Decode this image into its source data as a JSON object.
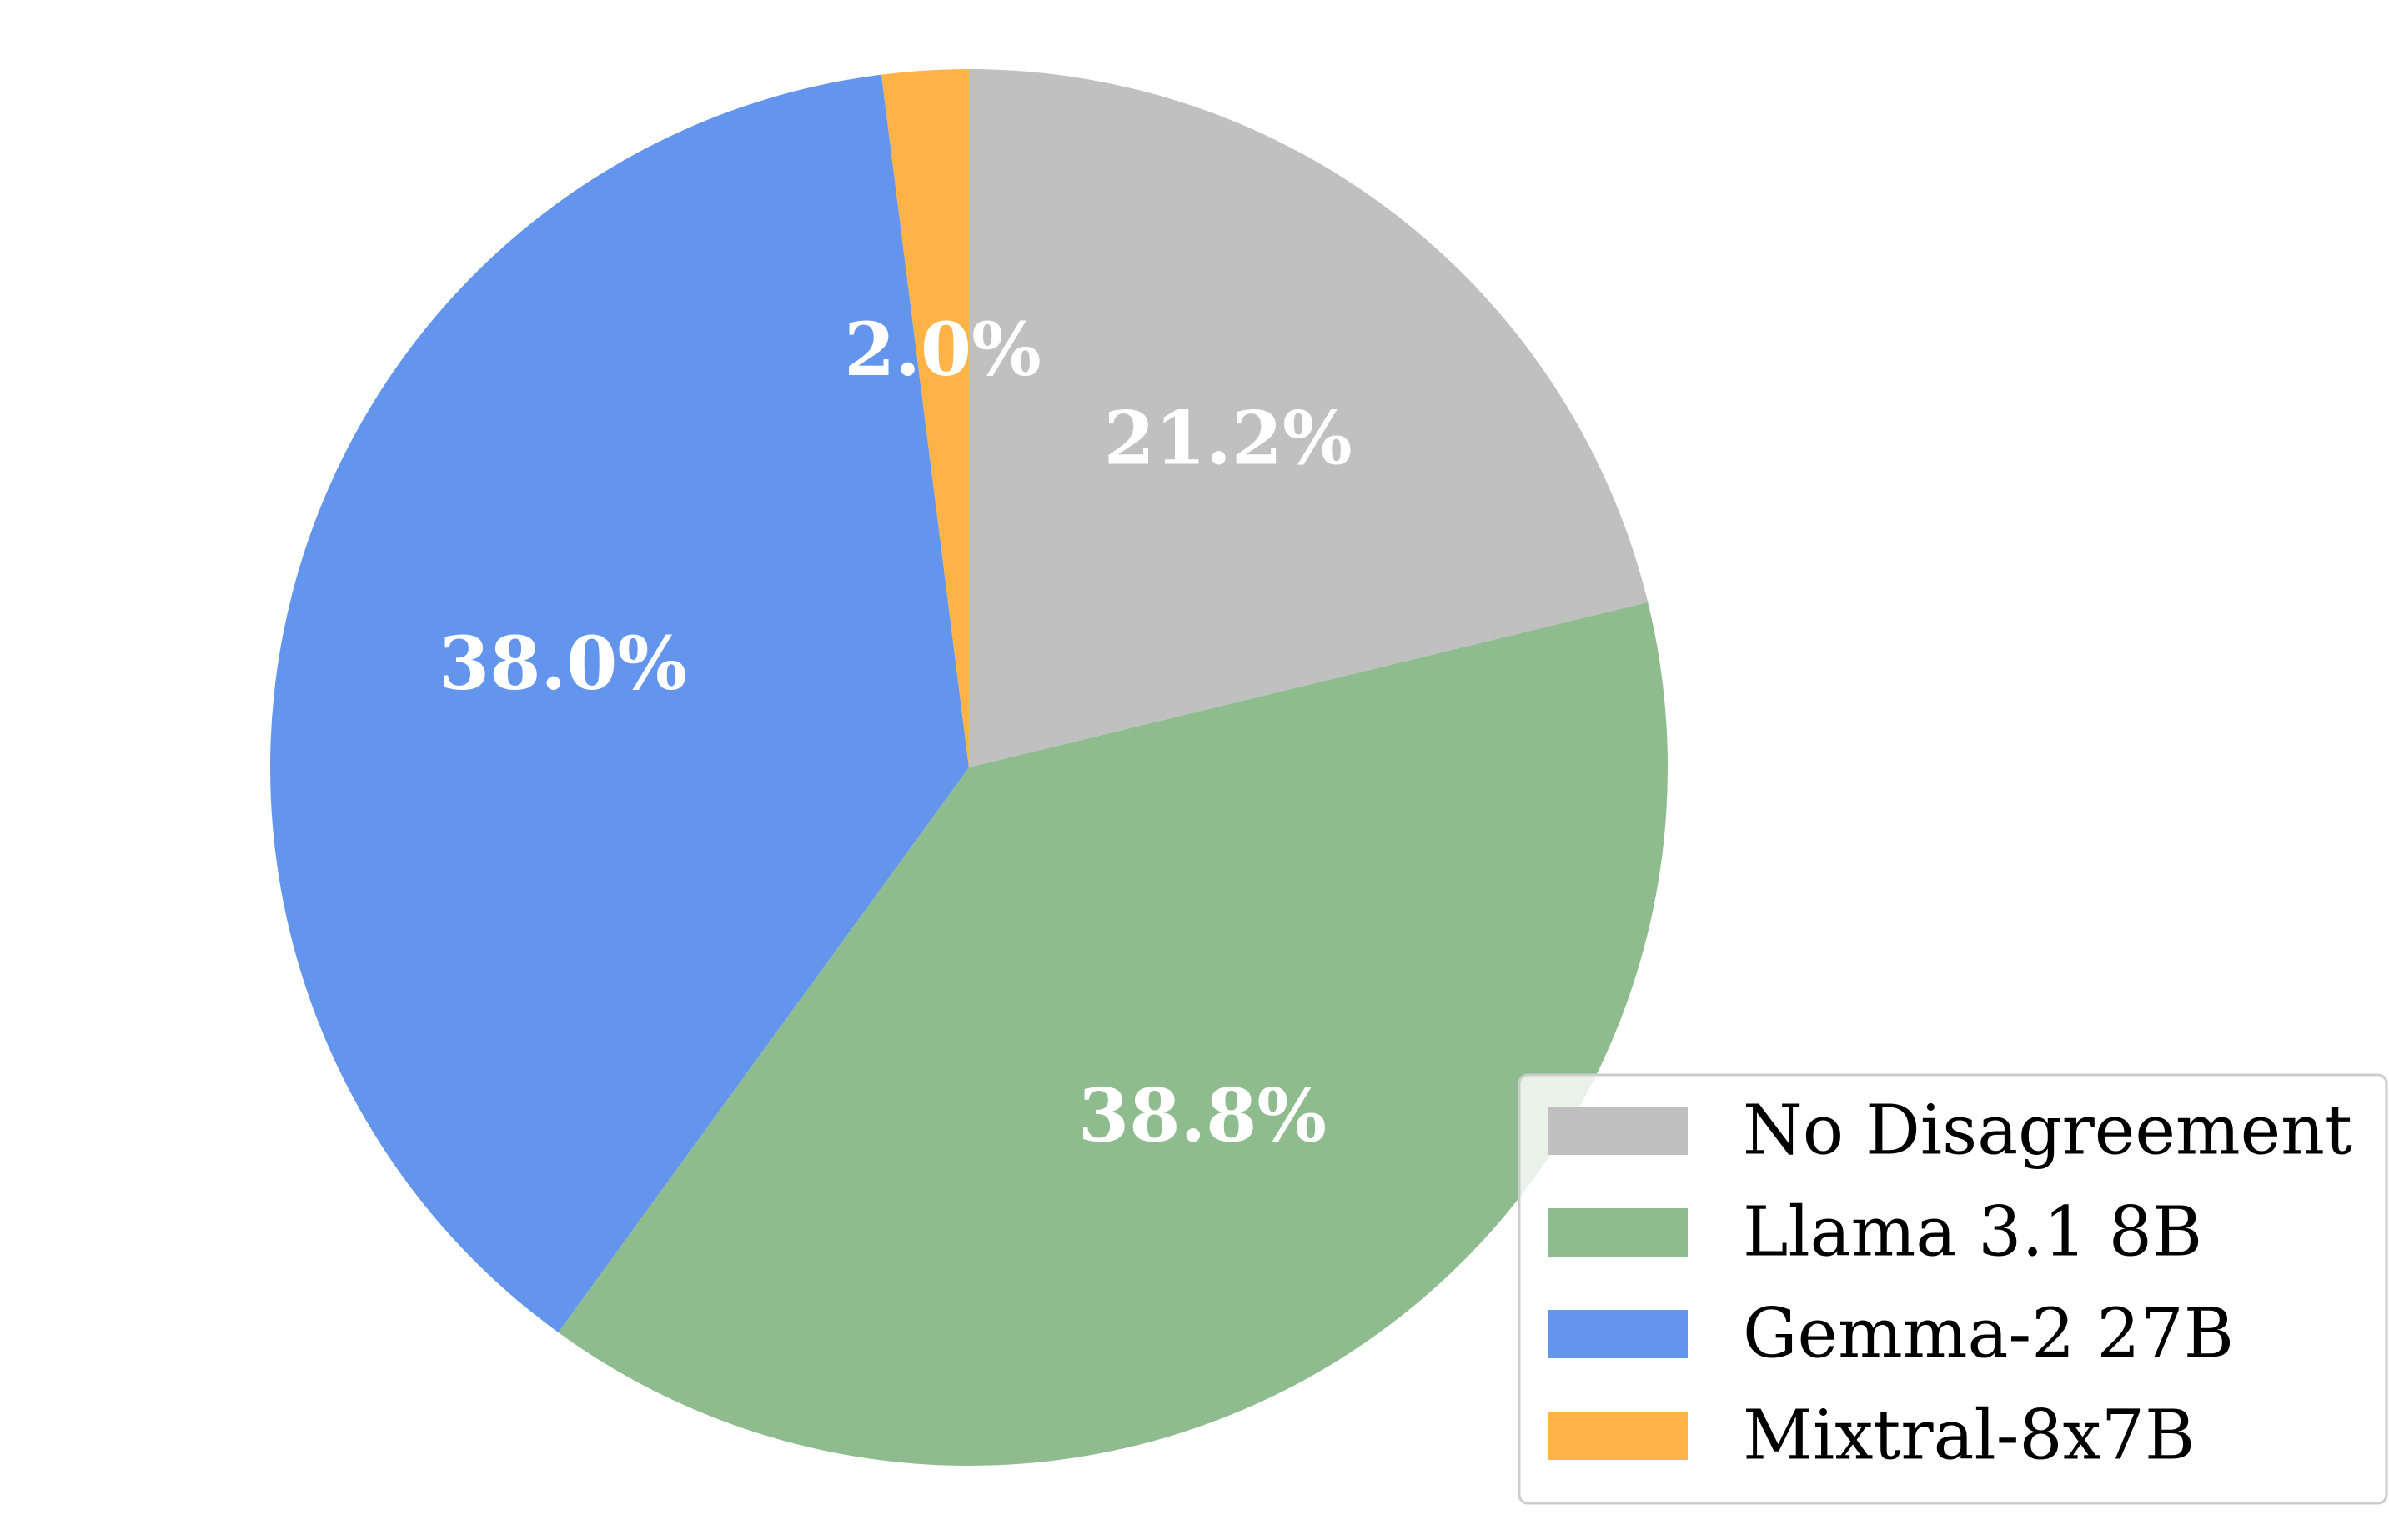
{
  "chart_data": {
    "type": "pie",
    "title": "",
    "start_angle_deg": 90,
    "direction": "clockwise",
    "legend_position": "bottom-right",
    "slices": [
      {
        "label": "No Disagreement",
        "value": 21.2,
        "pct_label": "21.2%",
        "color": "#c0c0c0"
      },
      {
        "label": "Llama 3.1 8B",
        "value": 38.8,
        "pct_label": "38.8%",
        "color": "#8fbc8f"
      },
      {
        "label": "Gemma-2 27B",
        "value": 38.0,
        "pct_label": "38.0%",
        "color": "#6495ed"
      },
      {
        "label": "Mixtral-8x7B",
        "value": 2.0,
        "pct_label": "2.0%",
        "color": "#ffb347"
      }
    ]
  }
}
